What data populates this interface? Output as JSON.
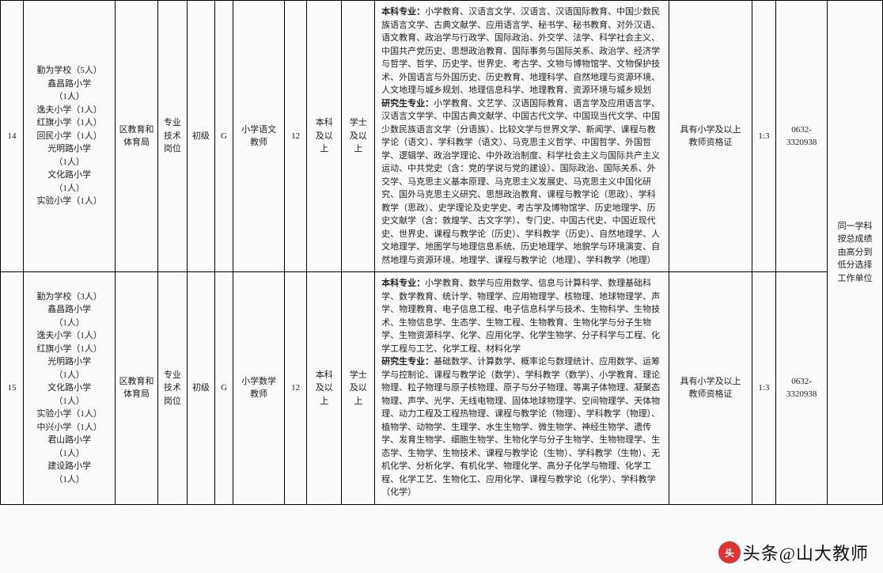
{
  "cols": [
    25,
    100,
    46,
    32,
    30,
    20,
    56,
    24,
    38,
    36,
    320,
    90,
    26,
    56,
    60
  ],
  "rows": [
    {
      "c0": "14",
      "c1": "勤为学校（5人）\n鑫昌路小学\n（1人）\n逸夫小学（1人）\n红旗小学（1人）\n回民小学（1人）\n光明路小学\n（1人）\n文化路小学\n（1人）\n实验小学（1人）",
      "c2": "区教育和\n体育局",
      "c3": "专业\n技术\n岗位",
      "c4": "初级",
      "c5": "G",
      "c6": "小学语文\n教师",
      "c7": "12",
      "c8": "本科\n及以\n上",
      "c9": "学士\n及以\n上",
      "c10": "<b>本科专业：</b>小学教育、汉语言文学、汉语言、汉语国际教育、中国少数民族语言文学、古典文献学、应用语言学、秘书学、秘书教育、对外汉语、语文教育、政治学与行政学、国际政治、外交学、法学、科学社会主义、中国共产党历史、思想政治教育、国际事务与国际关系、政治学、经济学与哲学、哲学、历史学、世界史、考古学、文物与博物馆学、文物保护技术、外国语言与外国历史、历史教育、地理科学、自然地理与资源环境、人文地理与城乡规划、地理信息科学、地理教育、资源环境与城乡规划<br><b>研究生专业：</b>小学教育、文艺学、汉语国际教育、语言学及应用语言学、汉语言文学学、中国古典文献学、中国古代文学、中国现当代文学、中国少数民族语言文学（分语族）、比较文学与世界文学、新闻学、课程与教学论（语文）、学科教学（语文）、马克思主义哲学、中国哲学、外国哲学、逻辑学、政治学理论、中外政治制度、科学社会主义与国际共产主义运动、中共党史（含：党的学说与党的建设）、国际政治、国际关系、外交学、马克思主义基本原理、马克思主义发展史、马克思主义中国化研究、国外马克思主义研究、思想政治教育、课程与教学论（思政）、学科教学（思政）、史学理论及史学史、考古学及博物馆学、历史地理学、历史文献学（含：敦煌学、古文字学）、专门史、中国古代史、中国近现代史、世界史、课程与教学论（历史）、学科教学（历史）、自然地理学、人文地理学、地图学与地理信息系统、历史地理学、地貌学与环境演变、自然地理与资源环境、地理学、课程与教学论（地理）、学科教学（地理）",
      "c11": "具有小学及以上\n教师资格证",
      "c12": "1:3",
      "c13": "0632-\n3320938",
      "c14": "同一学科\n按总成绩\n由高分到\n低分选择\n工作单位",
      "rs14": 2
    },
    {
      "c0": "15",
      "c1": "勤为学校（3人）\n鑫昌路小学\n（1人）\n逸夫小学（1人）\n红旗小学（1人）\n光明路小学\n（1人）\n文化路小学\n（1人）\n实验小学（1人）\n中兴小学（1人）\n君山路小学\n（1人）\n建设路小学\n（1人）",
      "c2": "区教育和\n体育局",
      "c3": "专业\n技术\n岗位",
      "c4": "初级",
      "c5": "G",
      "c6": "小学数学\n教师",
      "c7": "12",
      "c8": "本科\n及以\n上",
      "c9": "学士\n及以\n上",
      "c10": "<b>本科专业：</b>小学教育、数学与应用数学、信息与计算科学、数理基础科学、数学教育、统计学、物理学、应用物理学、核物理、地球物理学、声学、物理教育、电子信息工程、电子信息科学与技术、生物科学、生物技术、生物信息学、生态学、生物工程、生物教育、生物化学与分子生物学、生物资源科学、化学、应用化学、化学生物学、分子科学与工程、化学工程与工艺、化学工程、材料化学<br><b>研究生专业：</b>基础数学、计算数学、概率论与数理统计、应用数学、运筹学与控制论、课程与教学论（数学）、学科教学（数学）、小学教育、理论物理、粒子物理与原子核物理、原子与分子物理、等离子体物理、凝聚态物理、声学、光学、无线电物理、固体地球物理学、空间物理学、天体物理、动力工程及工程热物理、课程与教学论（物理）、学科教学（物理）、植物学、动物学、生理学、水生生物学、微生物学、神经生物学、遗传学、发育生物学、细胞生物学、生物化学与分子生物学、生物物理学、生态学、生物学、生物技术、课程与教学论（生物）、学科教学（生物）、无机化学、分析化学、有机化学、物理化学、高分子化学与物理、化学工程、化学工艺、生物化工、应用化学、课程与教学论（化学）、学科教学（化学）",
      "c11": "具有小学及以上\n教师资格证",
      "c12": "1:3",
      "c13": "0632-\n3320938"
    }
  ],
  "watermark": "头条@山大教师"
}
